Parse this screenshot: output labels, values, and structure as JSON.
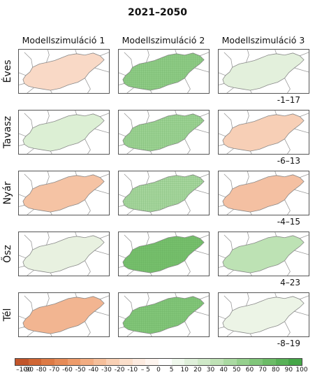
{
  "title": "2021–2050",
  "columns": [
    "Modellszimuláció 1",
    "Modellszimuláció 2",
    "Modellszimuláció 3"
  ],
  "rows": [
    {
      "label": "Éves",
      "range": "-1–17",
      "tones": [
        "#f9d9c6",
        "#8fcc86",
        "#e3f0dc"
      ]
    },
    {
      "label": "Tavasz",
      "range": "-6–13",
      "tones": [
        "#dcefd4",
        "#9dd394",
        "#f7cfb6"
      ]
    },
    {
      "label": "Nyár",
      "range": "-4–15",
      "tones": [
        "#f5c3a4",
        "#a8d79f",
        "#f4c0a2"
      ]
    },
    {
      "label": "Ősz",
      "range": "4–23",
      "tones": [
        "#e8f1e0",
        "#76c06c",
        "#bde2b4"
      ]
    },
    {
      "label": "Tél",
      "range": "-8–19",
      "tones": [
        "#f2b591",
        "#82c679",
        "#ecf4e6"
      ]
    }
  ],
  "colorbar": {
    "ticks": [
      "–100",
      "-90",
      "-80",
      "-70",
      "-60",
      "-50",
      "-40",
      "-30",
      "-20",
      "-10",
      "– 5",
      "0",
      "5",
      "10",
      "20",
      "30",
      "40",
      "50",
      "60",
      "70",
      "80",
      "90",
      "100"
    ],
    "colors": [
      "#c2552a",
      "#d06634",
      "#dd7a45",
      "#e68b57",
      "#ee9c6b",
      "#f3ad82",
      "#f6bf9a",
      "#f9d0b4",
      "#fbdfcb",
      "#fdebe0",
      "#fef5ef",
      "#ffffff",
      "#eff8ec",
      "#dff0da",
      "#cfe9c8",
      "#bfe2b6",
      "#aadaa2",
      "#95d08d",
      "#80c67a",
      "#6cbc67",
      "#58b157",
      "#45a648"
    ]
  }
}
